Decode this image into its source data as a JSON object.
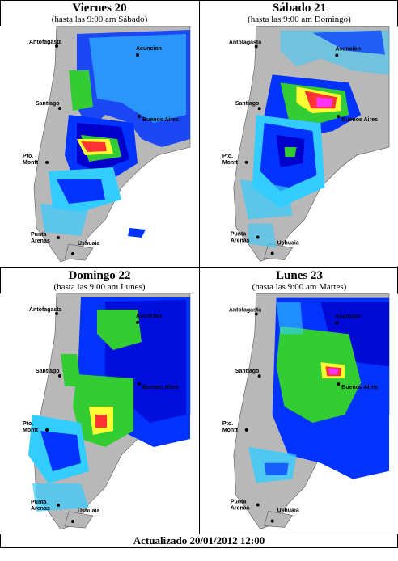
{
  "panels": [
    {
      "title": "Viernes 20",
      "subtitle": "(hasta las 9:00 am Sábado)"
    },
    {
      "title": "Sábado 21",
      "subtitle": "(hasta las 9:00 am Domingo)"
    },
    {
      "title": "Domingo 22",
      "subtitle": "(hasta las 9:00 am Lunes)"
    },
    {
      "title": "Lunes 23",
      "subtitle": "(hasta las 9:00 am Martes)"
    }
  ],
  "cities": {
    "antofagasta": "Antofagasta",
    "asuncion": "Asuncion",
    "santiago": "Santiago",
    "buenos_aires": "Buenos Aires",
    "pto": "Pto.",
    "montt": "Montt",
    "punta": "Punta",
    "arenas": "Arenas",
    "ushuaia": "Ushuaia"
  },
  "footer": "Actualizado 20/01/2012  12:00",
  "colors": {
    "land": "#b8b8b8",
    "ocean": "#ffffff",
    "light_blue": "#33ccff",
    "blue": "#0033ff",
    "dark_blue": "#0000cc",
    "green": "#33cc33",
    "yellow": "#ffff33",
    "red": "#ff3333",
    "magenta": "#ff33ff"
  }
}
